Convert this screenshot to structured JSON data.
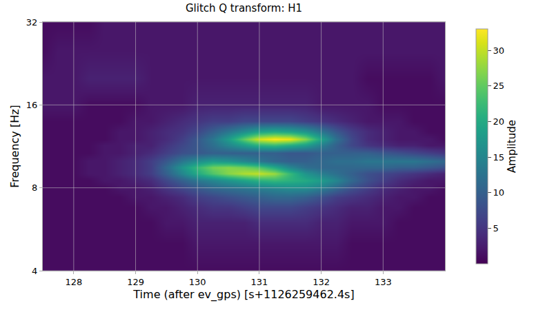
{
  "chart_data": {
    "type": "heatmap",
    "title": "Glitch Q transform: H1",
    "x_label": "Time (after ev_gps) [s+1126259462.4s]",
    "y_label": "Frequency [Hz]",
    "log": "y",
    "grid": true,
    "color": "Viridis",
    "x": [
      127.5,
      127.75,
      128,
      128.25,
      128.5,
      128.75,
      129,
      129.25,
      129.5,
      129.75,
      130,
      130.25,
      130.5,
      130.75,
      131,
      131.25,
      131.5,
      131.75,
      132,
      132.25,
      132.5,
      132.75,
      133,
      133.25,
      133.5,
      133.75,
      134
    ],
    "y": [
      4,
      5,
      6,
      6.8,
      7.4,
      8,
      8.5,
      9,
      9.5,
      10,
      10.7,
      11.4,
      12,
      12.8,
      14,
      16,
      20,
      25,
      32
    ],
    "z": [
      [
        1,
        1,
        1,
        1,
        1,
        1,
        1,
        1,
        1,
        1,
        1,
        1,
        1,
        1,
        1,
        1,
        1,
        1,
        1,
        1,
        1,
        1,
        1,
        1,
        1,
        1,
        1
      ],
      [
        1,
        1,
        1,
        1,
        1,
        1,
        1,
        1,
        1,
        1,
        2,
        2,
        2,
        2,
        2,
        2,
        2,
        2,
        2,
        2,
        1,
        1,
        1,
        1,
        1,
        1,
        1
      ],
      [
        1,
        1,
        1,
        1,
        1,
        1,
        1,
        1,
        2,
        2,
        3,
        3,
        3,
        3,
        4,
        4,
        4,
        4,
        3,
        3,
        2,
        2,
        2,
        1,
        1,
        1,
        1
      ],
      [
        1,
        1,
        1,
        1,
        1,
        1,
        1,
        2,
        2,
        3,
        4,
        5,
        5,
        6,
        7,
        7,
        7,
        6,
        5,
        4,
        3,
        3,
        2,
        2,
        1,
        1,
        1
      ],
      [
        1,
        1,
        1,
        1,
        1,
        1,
        2,
        2,
        3,
        4,
        6,
        7,
        8,
        9,
        10,
        11,
        11,
        10,
        8,
        6,
        5,
        4,
        3,
        2,
        2,
        1,
        1
      ],
      [
        1,
        1,
        1,
        1,
        1,
        2,
        2,
        3,
        5,
        7,
        9,
        11,
        12,
        13,
        14,
        15,
        16,
        16,
        14,
        11,
        8,
        6,
        4,
        3,
        2,
        2,
        1
      ],
      [
        1,
        1,
        1,
        1,
        2,
        2,
        3,
        4,
        7,
        10,
        13,
        15,
        17,
        19,
        21,
        22,
        21,
        20,
        18,
        15,
        11,
        8,
        6,
        4,
        3,
        2,
        2
      ],
      [
        1,
        1,
        1,
        2,
        2,
        3,
        4,
        6,
        10,
        15,
        20,
        24,
        27,
        29,
        30,
        28,
        22,
        17,
        14,
        12,
        10,
        8,
        7,
        6,
        5,
        4,
        3
      ],
      [
        1,
        1,
        1,
        2,
        2,
        3,
        4,
        6,
        11,
        17,
        22,
        26,
        27,
        26,
        24,
        20,
        15,
        12,
        11,
        11,
        11,
        11,
        11,
        10,
        10,
        9,
        8
      ],
      [
        1,
        1,
        1,
        2,
        2,
        3,
        4,
        6,
        9,
        13,
        16,
        18,
        17,
        15,
        13,
        11,
        10,
        10,
        11,
        12,
        12,
        13,
        13,
        13,
        13,
        12,
        11
      ],
      [
        1,
        1,
        1,
        1,
        2,
        2,
        3,
        4,
        6,
        8,
        9,
        10,
        10,
        10,
        10,
        10,
        9,
        9,
        10,
        10,
        10,
        10,
        9,
        8,
        7,
        6,
        5
      ],
      [
        1,
        1,
        1,
        1,
        2,
        2,
        3,
        3,
        5,
        7,
        9,
        12,
        15,
        18,
        21,
        22,
        20,
        18,
        14,
        10,
        7,
        5,
        4,
        3,
        3,
        2,
        2
      ],
      [
        1,
        1,
        1,
        1,
        1,
        2,
        2,
        3,
        4,
        6,
        9,
        13,
        18,
        25,
        31,
        33,
        32,
        27,
        19,
        12,
        7,
        4,
        3,
        2,
        2,
        2,
        1
      ],
      [
        1,
        1,
        1,
        1,
        1,
        2,
        2,
        3,
        4,
        5,
        7,
        10,
        13,
        16,
        19,
        20,
        19,
        17,
        13,
        9,
        6,
        4,
        3,
        2,
        2,
        1,
        1
      ],
      [
        1,
        1,
        1,
        1,
        1,
        1,
        2,
        2,
        3,
        4,
        5,
        6,
        6,
        7,
        7,
        7,
        7,
        6,
        5,
        4,
        3,
        2,
        2,
        2,
        1,
        1,
        1
      ],
      [
        2,
        2,
        2,
        1,
        1,
        1,
        1,
        2,
        2,
        2,
        3,
        3,
        3,
        3,
        3,
        3,
        3,
        3,
        2,
        2,
        2,
        2,
        1,
        1,
        1,
        1,
        1
      ],
      [
        2,
        2,
        2,
        3,
        3,
        3,
        3,
        2,
        2,
        2,
        2,
        2,
        2,
        2,
        2,
        2,
        2,
        2,
        2,
        2,
        2,
        1,
        1,
        1,
        1,
        1,
        2
      ],
      [
        1,
        2,
        2,
        2,
        2,
        2,
        2,
        2,
        2,
        2,
        2,
        2,
        2,
        2,
        2,
        2,
        2,
        2,
        2,
        2,
        2,
        2,
        2,
        2,
        2,
        2,
        2
      ],
      [
        1,
        1,
        1,
        1,
        2,
        2,
        2,
        2,
        2,
        2,
        2,
        2,
        2,
        2,
        2,
        2,
        2,
        2,
        2,
        2,
        2,
        2,
        2,
        2,
        2,
        2,
        2
      ]
    ],
    "xlim": [
      127.5,
      134
    ],
    "ylim": [
      4,
      32
    ],
    "xticks": [
      128,
      129,
      130,
      131,
      132,
      133
    ],
    "yticks": [
      4,
      8,
      16,
      32
    ],
    "colorbar_title": "Amplitude",
    "zlim": [
      0,
      33
    ],
    "zticks": [
      5,
      10,
      15,
      20,
      25,
      30
    ]
  }
}
